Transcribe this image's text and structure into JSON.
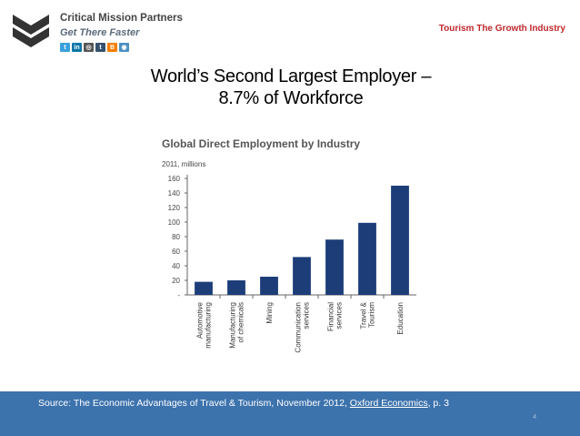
{
  "header": {
    "logo": {
      "name": "Critical Mission Partners",
      "tagline": "Get There Faster",
      "social_icons": [
        "twitter-icon",
        "linkedin-icon",
        "instagram-icon",
        "tumblr-icon",
        "blogger-icon",
        "feed-icon"
      ]
    },
    "top_right_label": "Tourism The Growth Industry"
  },
  "slide": {
    "title_line1": "World’s Second  Largest Employer –",
    "title_line2": "8.7% of Workforce"
  },
  "chart_data": {
    "type": "bar",
    "title": "Global Direct Employment by Industry",
    "subtitle": "2011, millions",
    "ylim": [
      0,
      160
    ],
    "yticks": [
      "160",
      "140",
      "120",
      "100",
      "80",
      "60",
      "40",
      "20",
      "-"
    ],
    "bar_color": "#1c3d78",
    "grid": false,
    "categories": [
      [
        "Automotive",
        "manufacturing"
      ],
      [
        "Manufacturing",
        "of chemicals"
      ],
      [
        "Mining"
      ],
      [
        "Communication",
        "services"
      ],
      [
        "Financial",
        "services"
      ],
      [
        "Travel &",
        "Tourism"
      ],
      [
        "Education"
      ]
    ],
    "values": [
      18,
      20,
      25,
      52,
      76,
      99,
      150
    ]
  },
  "footer": {
    "source_prefix": "Source: The Economic Advantages of Travel & Tourism, November 2012, ",
    "source_link": "Oxford Economics",
    "source_suffix": ", p. 3",
    "page_number": "4",
    "background": "#3d73ad"
  }
}
